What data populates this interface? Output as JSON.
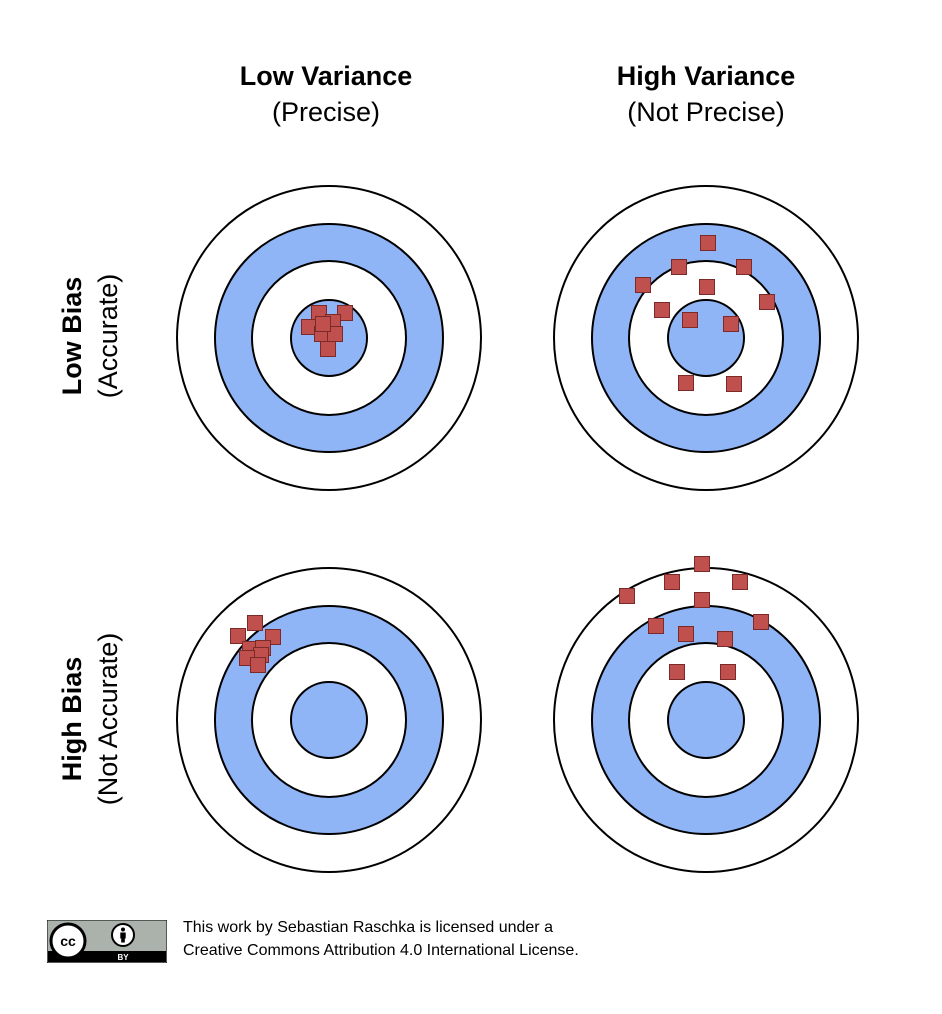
{
  "columns": [
    {
      "title": "Low Variance",
      "subtitle": "(Precise)"
    },
    {
      "title": "High Variance",
      "subtitle": "(Not Precise)"
    }
  ],
  "rows": [
    {
      "title": "Low Bias",
      "subtitle": "(Accurate)"
    },
    {
      "title": "High Bias",
      "subtitle": "(Not Accurate)"
    }
  ],
  "colors": {
    "ring_blue": "#8fb5f7",
    "ring_white": "#ffffff",
    "ring_stroke": "#000000",
    "marker_fill": "#c0504d",
    "marker_stroke": "#7a2a28"
  },
  "license": {
    "badge_cc": "cc",
    "badge_by": "BY",
    "line1": "This work by Sebastian Raschka is licensed under a",
    "line2": "Creative Commons Attribution 4.0 International License."
  }
}
